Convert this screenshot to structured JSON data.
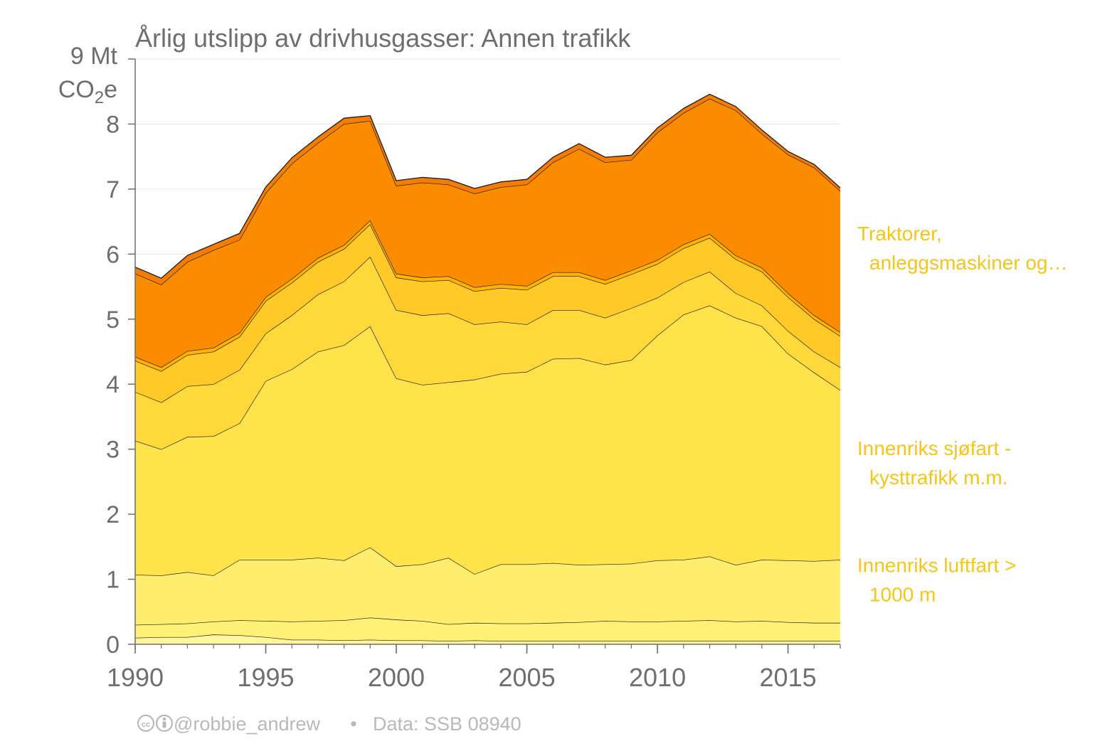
{
  "chart_data": {
    "type": "area",
    "stacked": true,
    "title": "Årlig utslipp av drivhusgasser: Annen trafikk",
    "y_unit_line1": "Mt",
    "y_unit_line2_pre": "CO",
    "y_unit_line2_sub": "2",
    "y_unit_line2_post": "e",
    "ylim": [
      0,
      9
    ],
    "y_ticks": [
      0,
      1,
      2,
      3,
      4,
      5,
      6,
      7,
      8,
      9
    ],
    "x_ticks": [
      1990,
      1995,
      2000,
      2005,
      2010,
      2015
    ],
    "x": [
      1990,
      1991,
      1992,
      1993,
      1994,
      1995,
      1996,
      1997,
      1998,
      1999,
      2000,
      2001,
      2002,
      2003,
      2004,
      2005,
      2006,
      2007,
      2008,
      2009,
      2010,
      2011,
      2012,
      2013,
      2014,
      2015,
      2016,
      2017
    ],
    "grid": "horizontal",
    "series": [
      {
        "name": "",
        "color": "#fff59d",
        "values": [
          0.1,
          0.11,
          0.11,
          0.15,
          0.14,
          0.11,
          0.07,
          0.07,
          0.06,
          0.07,
          0.06,
          0.06,
          0.05,
          0.06,
          0.05,
          0.05,
          0.05,
          0.05,
          0.05,
          0.05,
          0.05,
          0.05,
          0.05,
          0.05,
          0.05,
          0.05,
          0.05,
          0.05
        ]
      },
      {
        "name": "",
        "color": "#fff176",
        "values": [
          0.2,
          0.2,
          0.21,
          0.2,
          0.23,
          0.25,
          0.28,
          0.29,
          0.31,
          0.34,
          0.32,
          0.3,
          0.26,
          0.27,
          0.27,
          0.27,
          0.28,
          0.29,
          0.31,
          0.3,
          0.3,
          0.31,
          0.32,
          0.3,
          0.31,
          0.29,
          0.28,
          0.28
        ]
      },
      {
        "name": "Innenriks luftfart > 1000 m",
        "color": "#ffee6e",
        "values": [
          0.77,
          0.75,
          0.79,
          0.71,
          0.93,
          0.94,
          0.95,
          0.97,
          0.92,
          1.08,
          0.82,
          0.87,
          1.02,
          0.75,
          0.91,
          0.91,
          0.92,
          0.88,
          0.87,
          0.89,
          0.94,
          0.94,
          0.98,
          0.87,
          0.94,
          0.95,
          0.95,
          0.97
        ]
      },
      {
        "name": "Innenriks sjøfart - kysttrafikk m.m.",
        "color": "#ffe34a",
        "values": [
          2.06,
          1.94,
          2.08,
          2.14,
          2.1,
          2.75,
          2.93,
          3.17,
          3.31,
          3.4,
          2.89,
          2.76,
          2.7,
          2.99,
          2.93,
          2.96,
          3.14,
          3.18,
          3.07,
          3.13,
          3.46,
          3.77,
          3.86,
          3.8,
          3.59,
          3.18,
          2.9,
          2.61
        ]
      },
      {
        "name": "",
        "color": "#ffd93a",
        "values": [
          0.75,
          0.72,
          0.78,
          0.8,
          0.82,
          0.73,
          0.83,
          0.88,
          0.98,
          1.07,
          1.05,
          1.07,
          1.06,
          0.85,
          0.8,
          0.73,
          0.75,
          0.74,
          0.72,
          0.8,
          0.58,
          0.5,
          0.52,
          0.38,
          0.32,
          0.35,
          0.32,
          0.35
        ]
      },
      {
        "name": "",
        "color": "#ffc928",
        "values": [
          0.48,
          0.48,
          0.48,
          0.5,
          0.51,
          0.5,
          0.5,
          0.5,
          0.5,
          0.5,
          0.5,
          0.52,
          0.51,
          0.51,
          0.52,
          0.53,
          0.52,
          0.52,
          0.52,
          0.52,
          0.52,
          0.52,
          0.52,
          0.52,
          0.52,
          0.52,
          0.5,
          0.48
        ]
      },
      {
        "name": "",
        "color": "#ffb300",
        "values": [
          0.06,
          0.06,
          0.06,
          0.06,
          0.06,
          0.06,
          0.06,
          0.06,
          0.06,
          0.06,
          0.06,
          0.06,
          0.06,
          0.06,
          0.06,
          0.06,
          0.06,
          0.06,
          0.06,
          0.06,
          0.06,
          0.06,
          0.06,
          0.06,
          0.06,
          0.06,
          0.06,
          0.06
        ]
      },
      {
        "name": "Traktorer, anleggsmaskiner og…",
        "color": "#fb8c00",
        "values": [
          1.28,
          1.27,
          1.37,
          1.5,
          1.43,
          1.6,
          1.77,
          1.77,
          1.86,
          1.53,
          1.35,
          1.46,
          1.41,
          1.44,
          1.49,
          1.56,
          1.69,
          1.9,
          1.81,
          1.7,
          1.96,
          2.02,
          2.08,
          2.23,
          2.06,
          2.13,
          2.27,
          2.17
        ]
      },
      {
        "name": "",
        "color": "#f47c00",
        "values": [
          0.1,
          0.1,
          0.1,
          0.09,
          0.1,
          0.09,
          0.09,
          0.09,
          0.09,
          0.08,
          0.08,
          0.08,
          0.08,
          0.08,
          0.08,
          0.08,
          0.08,
          0.08,
          0.08,
          0.07,
          0.07,
          0.07,
          0.07,
          0.06,
          0.06,
          0.05,
          0.05,
          0.05
        ]
      }
    ],
    "right_labels": [
      {
        "lines": [
          "Traktorer,",
          "anleggsmaskiner og…"
        ],
        "y": 6.1
      },
      {
        "lines": [
          "Innenriks sjøfart -",
          "kysttrafikk m.m."
        ],
        "y": 2.8
      },
      {
        "lines": [
          "Innenriks luftfart >",
          "1000 m"
        ],
        "y": 1.0
      }
    ],
    "legend": "direct-labels-right",
    "credit": "@robbie_andrew",
    "credit_sep": "•",
    "source": "Data: SSB 08940"
  }
}
